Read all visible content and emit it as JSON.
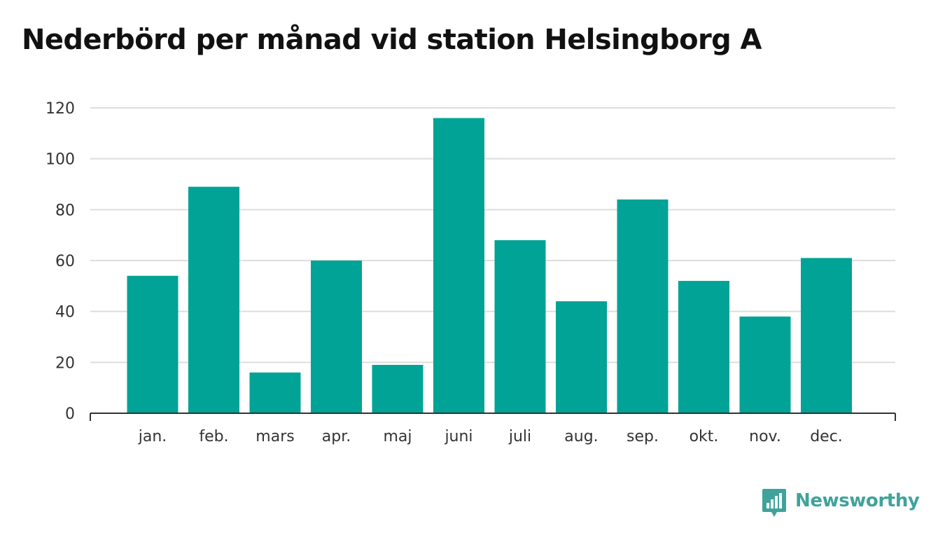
{
  "title": "Nederbörd per månad vid station Helsingborg A",
  "brand": {
    "name": "Newsworthy",
    "icon": "newsworthy-bar-chart-icon",
    "color": "#3fa39b"
  },
  "chart_data": {
    "type": "bar",
    "title": "Nederbörd per månad vid station Helsingborg A",
    "xlabel": "",
    "ylabel": "",
    "categories": [
      "jan.",
      "feb.",
      "mars",
      "apr.",
      "maj",
      "juni",
      "juli",
      "aug.",
      "sep.",
      "okt.",
      "nov.",
      "dec."
    ],
    "values": [
      54,
      89,
      16,
      60,
      19,
      116,
      68,
      44,
      84,
      52,
      38,
      61
    ],
    "ylim": [
      0,
      120
    ],
    "yticks": [
      0,
      20,
      40,
      60,
      80,
      100,
      120
    ],
    "grid": true,
    "legend": "none",
    "bar_color": "#00a396",
    "grid_color": "#dddddd",
    "axis_color": "#333333"
  }
}
